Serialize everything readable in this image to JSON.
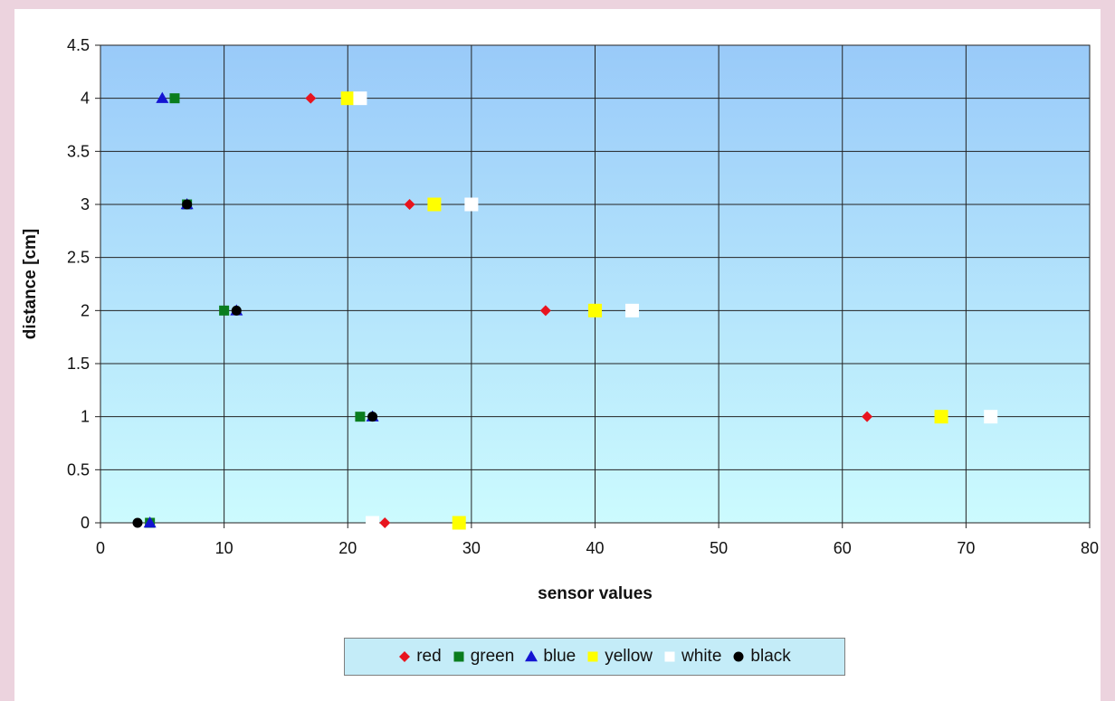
{
  "chart_data": {
    "type": "scatter",
    "title": "",
    "xlabel": "sensor values",
    "ylabel": "distance [cm]",
    "xlim": [
      0,
      80
    ],
    "ylim": [
      0,
      4.5
    ],
    "x_ticks": [
      "0",
      "10",
      "20",
      "30",
      "40",
      "50",
      "60",
      "70",
      "80"
    ],
    "y_ticks": [
      "0",
      "0.5",
      "1",
      "1.5",
      "2",
      "2.5",
      "3",
      "3.5",
      "4",
      "4.5"
    ],
    "grid": true,
    "legend_position": "bottom",
    "series": [
      {
        "name": "red",
        "color": "#e8141e",
        "marker": "diamond",
        "points": [
          [
            17,
            4
          ],
          [
            25,
            3
          ],
          [
            36,
            2
          ],
          [
            62,
            1
          ],
          [
            23,
            0
          ]
        ]
      },
      {
        "name": "green",
        "color": "#0a7d1e",
        "marker": "square",
        "points": [
          [
            6,
            4
          ],
          [
            7,
            3
          ],
          [
            10,
            2
          ],
          [
            21,
            1
          ],
          [
            4,
            0
          ]
        ]
      },
      {
        "name": "blue",
        "color": "#1414d2",
        "marker": "triangle",
        "points": [
          [
            5,
            4
          ],
          [
            7,
            3
          ],
          [
            11,
            2
          ],
          [
            22,
            1
          ],
          [
            4,
            0
          ]
        ]
      },
      {
        "name": "yellow",
        "color": "#ffff00",
        "marker": "square-large",
        "points": [
          [
            20,
            4
          ],
          [
            27,
            3
          ],
          [
            40,
            2
          ],
          [
            68,
            1
          ],
          [
            29,
            0
          ]
        ]
      },
      {
        "name": "white",
        "color": "#ffffff",
        "marker": "square-large",
        "points": [
          [
            21,
            4
          ],
          [
            30,
            3
          ],
          [
            43,
            2
          ],
          [
            72,
            1
          ],
          [
            22,
            0
          ]
        ]
      },
      {
        "name": "black",
        "color": "#000000",
        "marker": "circle",
        "points": [
          [
            7,
            3
          ],
          [
            11,
            2
          ],
          [
            22,
            1
          ],
          [
            3,
            0
          ]
        ]
      }
    ]
  }
}
